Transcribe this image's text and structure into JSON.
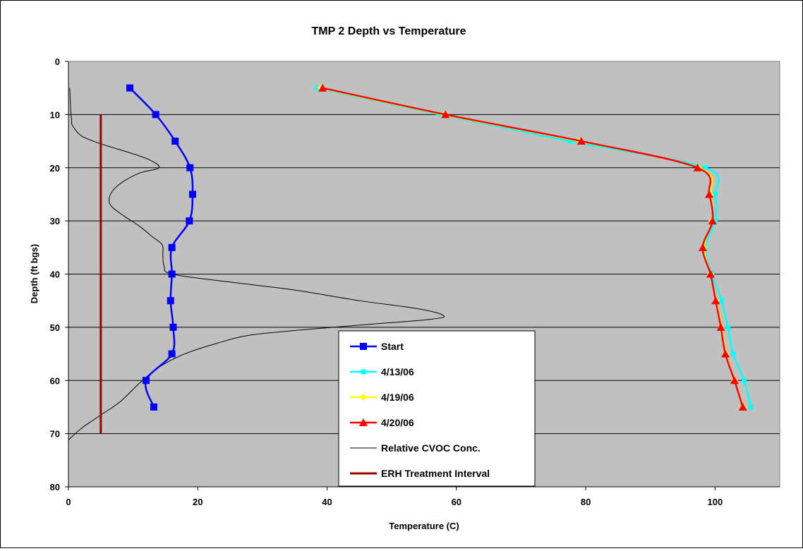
{
  "chart_data": {
    "type": "line",
    "title": "TMP 2 Depth vs Temperature",
    "xlabel": "Temperature (C)",
    "ylabel": "Depth (ft bgs)",
    "xlim": [
      0,
      110
    ],
    "ylim": [
      0,
      80
    ],
    "y_inverted": true,
    "x_ticks": [
      0,
      20,
      40,
      60,
      80,
      100
    ],
    "y_ticks": [
      0,
      10,
      20,
      30,
      40,
      50,
      60,
      70,
      80
    ],
    "grid": "horizontal",
    "plot_background": "#C0C0C0",
    "legend_position": "bottom-center",
    "series": [
      {
        "name": "Start",
        "color": "#0000FF",
        "marker": "square",
        "points": [
          [
            9.5,
            5
          ],
          [
            13.5,
            10
          ],
          [
            16.5,
            15
          ],
          [
            18.8,
            20
          ],
          [
            19.2,
            25
          ],
          [
            18.7,
            30
          ],
          [
            16,
            35
          ],
          [
            16,
            40
          ],
          [
            15.8,
            45
          ],
          [
            16.2,
            50
          ],
          [
            16,
            55
          ],
          [
            12,
            60
          ],
          [
            13.2,
            65
          ]
        ]
      },
      {
        "name": "4/13/06",
        "color": "#00FFFF",
        "marker": "small-square",
        "points": [
          [
            38.5,
            5
          ],
          [
            57.5,
            10
          ],
          [
            77.5,
            15
          ],
          [
            98.5,
            20
          ],
          [
            100,
            25
          ],
          [
            100,
            30
          ],
          [
            98.5,
            35
          ],
          [
            99.5,
            40
          ],
          [
            101,
            45
          ],
          [
            102,
            50
          ],
          [
            102.8,
            55
          ],
          [
            104.5,
            60
          ],
          [
            105.5,
            65
          ]
        ]
      },
      {
        "name": "4/19/06",
        "color": "#FFFF00",
        "marker": "diamond",
        "points": [
          [
            39,
            5
          ],
          [
            58,
            10
          ],
          [
            79,
            15
          ],
          [
            97.5,
            20
          ],
          [
            99.3,
            25
          ],
          [
            99.5,
            30
          ],
          [
            98.3,
            35
          ],
          [
            99.3,
            40
          ],
          [
            100.2,
            45
          ],
          [
            101,
            50
          ],
          [
            101.7,
            55
          ],
          [
            103,
            60
          ],
          [
            104.4,
            65
          ]
        ]
      },
      {
        "name": "4/20/06",
        "color": "#FF0000",
        "marker": "triangle",
        "points": [
          [
            39.3,
            5
          ],
          [
            58.3,
            10
          ],
          [
            79.3,
            15
          ],
          [
            97.3,
            20
          ],
          [
            99.1,
            25
          ],
          [
            99.6,
            30
          ],
          [
            98.1,
            35
          ],
          [
            99.3,
            40
          ],
          [
            100.1,
            45
          ],
          [
            100.9,
            50
          ],
          [
            101.6,
            55
          ],
          [
            103,
            60
          ],
          [
            104.3,
            65
          ]
        ]
      },
      {
        "name": "Relative CVOC Conc.",
        "color": "#000000",
        "marker": "none",
        "points": [
          [
            0.2,
            5
          ],
          [
            0.3,
            8
          ],
          [
            0.4,
            10
          ],
          [
            0.5,
            11
          ],
          [
            0.6,
            12
          ],
          [
            2,
            14
          ],
          [
            5,
            15.5
          ],
          [
            9,
            17
          ],
          [
            12.5,
            18.5
          ],
          [
            14,
            20
          ],
          [
            11,
            21
          ],
          [
            8,
            23
          ],
          [
            6.5,
            25
          ],
          [
            6.5,
            27
          ],
          [
            8.5,
            29
          ],
          [
            11,
            31
          ],
          [
            13,
            33
          ],
          [
            14.5,
            34.5
          ],
          [
            14.6,
            36.5
          ],
          [
            14.8,
            38.5
          ],
          [
            16,
            40
          ],
          [
            25,
            41.5
          ],
          [
            35,
            43
          ],
          [
            45,
            45
          ],
          [
            54,
            46.5
          ],
          [
            58,
            47.8
          ],
          [
            56,
            48.5
          ],
          [
            46,
            49.5
          ],
          [
            36,
            50.5
          ],
          [
            28,
            51.5
          ],
          [
            23,
            53
          ],
          [
            18,
            55
          ],
          [
            14,
            57.5
          ],
          [
            11,
            60.5
          ],
          [
            8,
            64
          ],
          [
            5,
            66.5
          ],
          [
            2,
            69
          ],
          [
            0,
            71.2
          ]
        ]
      },
      {
        "name": "ERH Treatment Interval",
        "color": "#990000",
        "marker": "none",
        "points": [
          [
            5,
            10
          ],
          [
            5,
            70
          ]
        ]
      }
    ]
  }
}
